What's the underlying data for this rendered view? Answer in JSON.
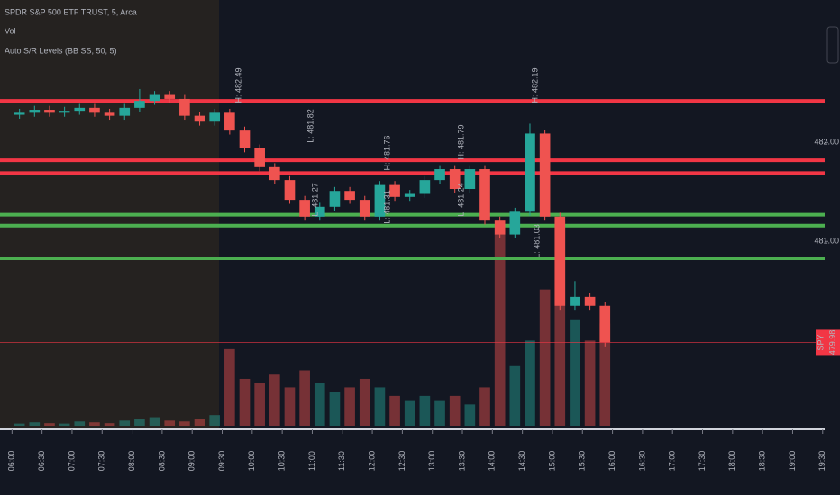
{
  "chart_data": {
    "type": "candlestick",
    "title": "SPDR S&P 500 ETF TRUST, 5, Arca",
    "volume_label": "Vol",
    "indicator_label": "Auto S/R Levels (BB SS, 50, 5)",
    "x": [
      "06:00",
      "06:15",
      "06:30",
      "06:45",
      "07:00",
      "07:15",
      "07:30",
      "07:45",
      "08:00",
      "08:15",
      "08:30",
      "08:45",
      "09:00",
      "09:15",
      "09:30",
      "09:45",
      "10:00",
      "10:15",
      "10:30",
      "10:45",
      "11:00",
      "11:15",
      "11:30",
      "11:45",
      "12:00",
      "12:15",
      "12:30",
      "12:45",
      "13:00",
      "13:15",
      "13:30",
      "13:45",
      "14:00",
      "14:15",
      "14:30",
      "14:45",
      "15:00",
      "15:15",
      "15:30",
      "15:45"
    ],
    "open": [
      482.28,
      482.3,
      482.33,
      482.3,
      482.32,
      482.35,
      482.3,
      482.27,
      482.35,
      482.42,
      482.48,
      482.44,
      482.27,
      482.21,
      482.3,
      482.12,
      481.94,
      481.75,
      481.62,
      481.42,
      481.25,
      481.35,
      481.51,
      481.42,
      481.25,
      481.57,
      481.45,
      481.48,
      481.62,
      481.73,
      481.53,
      481.73,
      481.21,
      481.07,
      481.3,
      482.09,
      481.25,
      480.35,
      480.44,
      480.35
    ],
    "high": [
      482.34,
      482.37,
      482.37,
      482.36,
      482.39,
      482.39,
      482.34,
      482.39,
      482.54,
      482.52,
      482.52,
      482.48,
      482.31,
      482.34,
      482.34,
      482.16,
      481.98,
      481.79,
      481.66,
      481.46,
      481.39,
      481.55,
      481.55,
      481.46,
      481.61,
      481.61,
      481.52,
      481.66,
      481.77,
      481.77,
      481.77,
      481.77,
      481.25,
      481.34,
      482.19,
      482.13,
      481.29,
      480.6,
      480.48,
      480.39
    ],
    "low": [
      482.24,
      482.26,
      482.26,
      482.26,
      482.28,
      482.26,
      482.23,
      482.23,
      482.31,
      482.38,
      482.4,
      482.23,
      482.17,
      482.17,
      482.08,
      481.9,
      481.71,
      481.58,
      481.38,
      481.21,
      481.21,
      481.31,
      481.38,
      481.21,
      481.21,
      481.41,
      481.41,
      481.44,
      481.58,
      481.49,
      481.49,
      481.17,
      481.03,
      481.03,
      481.26,
      481.21,
      480.31,
      480.31,
      480.31,
      479.94
    ],
    "close": [
      482.3,
      482.33,
      482.3,
      482.32,
      482.35,
      482.3,
      482.27,
      482.35,
      482.42,
      482.48,
      482.44,
      482.27,
      482.21,
      482.3,
      482.12,
      481.94,
      481.75,
      481.62,
      481.42,
      481.25,
      481.35,
      481.51,
      481.42,
      481.25,
      481.57,
      481.45,
      481.48,
      481.62,
      481.73,
      481.53,
      481.73,
      481.21,
      481.07,
      481.3,
      482.09,
      481.25,
      480.35,
      480.44,
      480.35,
      479.98
    ],
    "volume": [
      5,
      8,
      6,
      5,
      10,
      8,
      6,
      12,
      15,
      20,
      12,
      10,
      15,
      25,
      180,
      110,
      100,
      120,
      90,
      130,
      100,
      80,
      90,
      110,
      90,
      70,
      60,
      70,
      60,
      70,
      50,
      90,
      450,
      140,
      200,
      320,
      480,
      250,
      200,
      240
    ],
    "up_color": "#26a69a",
    "down_color": "#ef5350",
    "levels": [
      {
        "price": 482.42,
        "color": "#f23645"
      },
      {
        "price": 481.82,
        "color": "#f23645"
      },
      {
        "price": 481.69,
        "color": "#f23645"
      },
      {
        "price": 481.27,
        "color": "#4caf50"
      },
      {
        "price": 481.16,
        "color": "#4caf50"
      },
      {
        "price": 480.83,
        "color": "#4caf50"
      }
    ],
    "annotations": [
      "H: 482.49",
      "L: 481.82",
      "H: 481.76",
      "H: 481.79",
      "L: 481.27",
      "L: 481.31",
      "L: 481.24",
      "H: 482.19",
      "L: 481.03"
    ],
    "symbol": "SPY",
    "last_price_label": "479.98",
    "xlim": [
      "05:48",
      "19:32"
    ],
    "xticks": [
      "06:00",
      "06:30",
      "07:00",
      "07:30",
      "08:00",
      "08:30",
      "09:00",
      "09:30",
      "10:00",
      "10:30",
      "11:00",
      "11:30",
      "12:00",
      "12:30",
      "13:00",
      "13:30",
      "14:00",
      "14:30",
      "15:00",
      "15:30",
      "16:00",
      "16:30",
      "17:00",
      "17:30",
      "18:00",
      "18:30",
      "19:00",
      "19:30"
    ],
    "ylim": [
      479.12,
      483.44
    ],
    "yticks": [
      {
        "value": 481,
        "label": "481.00"
      },
      {
        "value": 482,
        "label": "482.00"
      }
    ],
    "y2lim": [
      0,
      1000
    ]
  }
}
